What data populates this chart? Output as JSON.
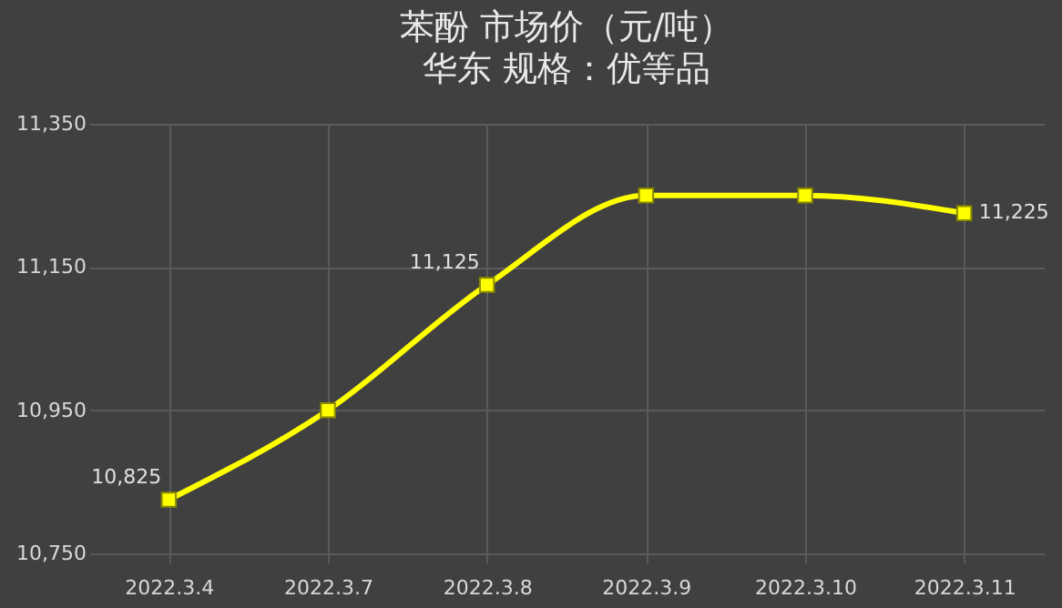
{
  "chart_data": {
    "type": "line",
    "title": "苯酚     市场价（元/吨）",
    "subtitle": "华东   规格：优等品",
    "categories": [
      "2022.3.4",
      "2022.3.7",
      "2022.3.8",
      "2022.3.9",
      "2022.3.10",
      "2022.3.11"
    ],
    "series": [
      {
        "color": "#ffff00",
        "values": [
          10825,
          10950,
          11125,
          11250,
          11250,
          11225
        ],
        "value_labels": [
          "10,825",
          null,
          "11,125",
          null,
          null,
          "11,225"
        ]
      }
    ],
    "ylim": [
      10750,
      11350
    ],
    "yticks": [
      {
        "value": 10750,
        "label": "10,750"
      },
      {
        "value": 10950,
        "label": "10,950"
      },
      {
        "value": 11150,
        "label": "11,150"
      },
      {
        "value": 11350,
        "label": "11,350"
      }
    ],
    "grid": true,
    "marker": "square",
    "line_style": "solid",
    "legend": false
  }
}
